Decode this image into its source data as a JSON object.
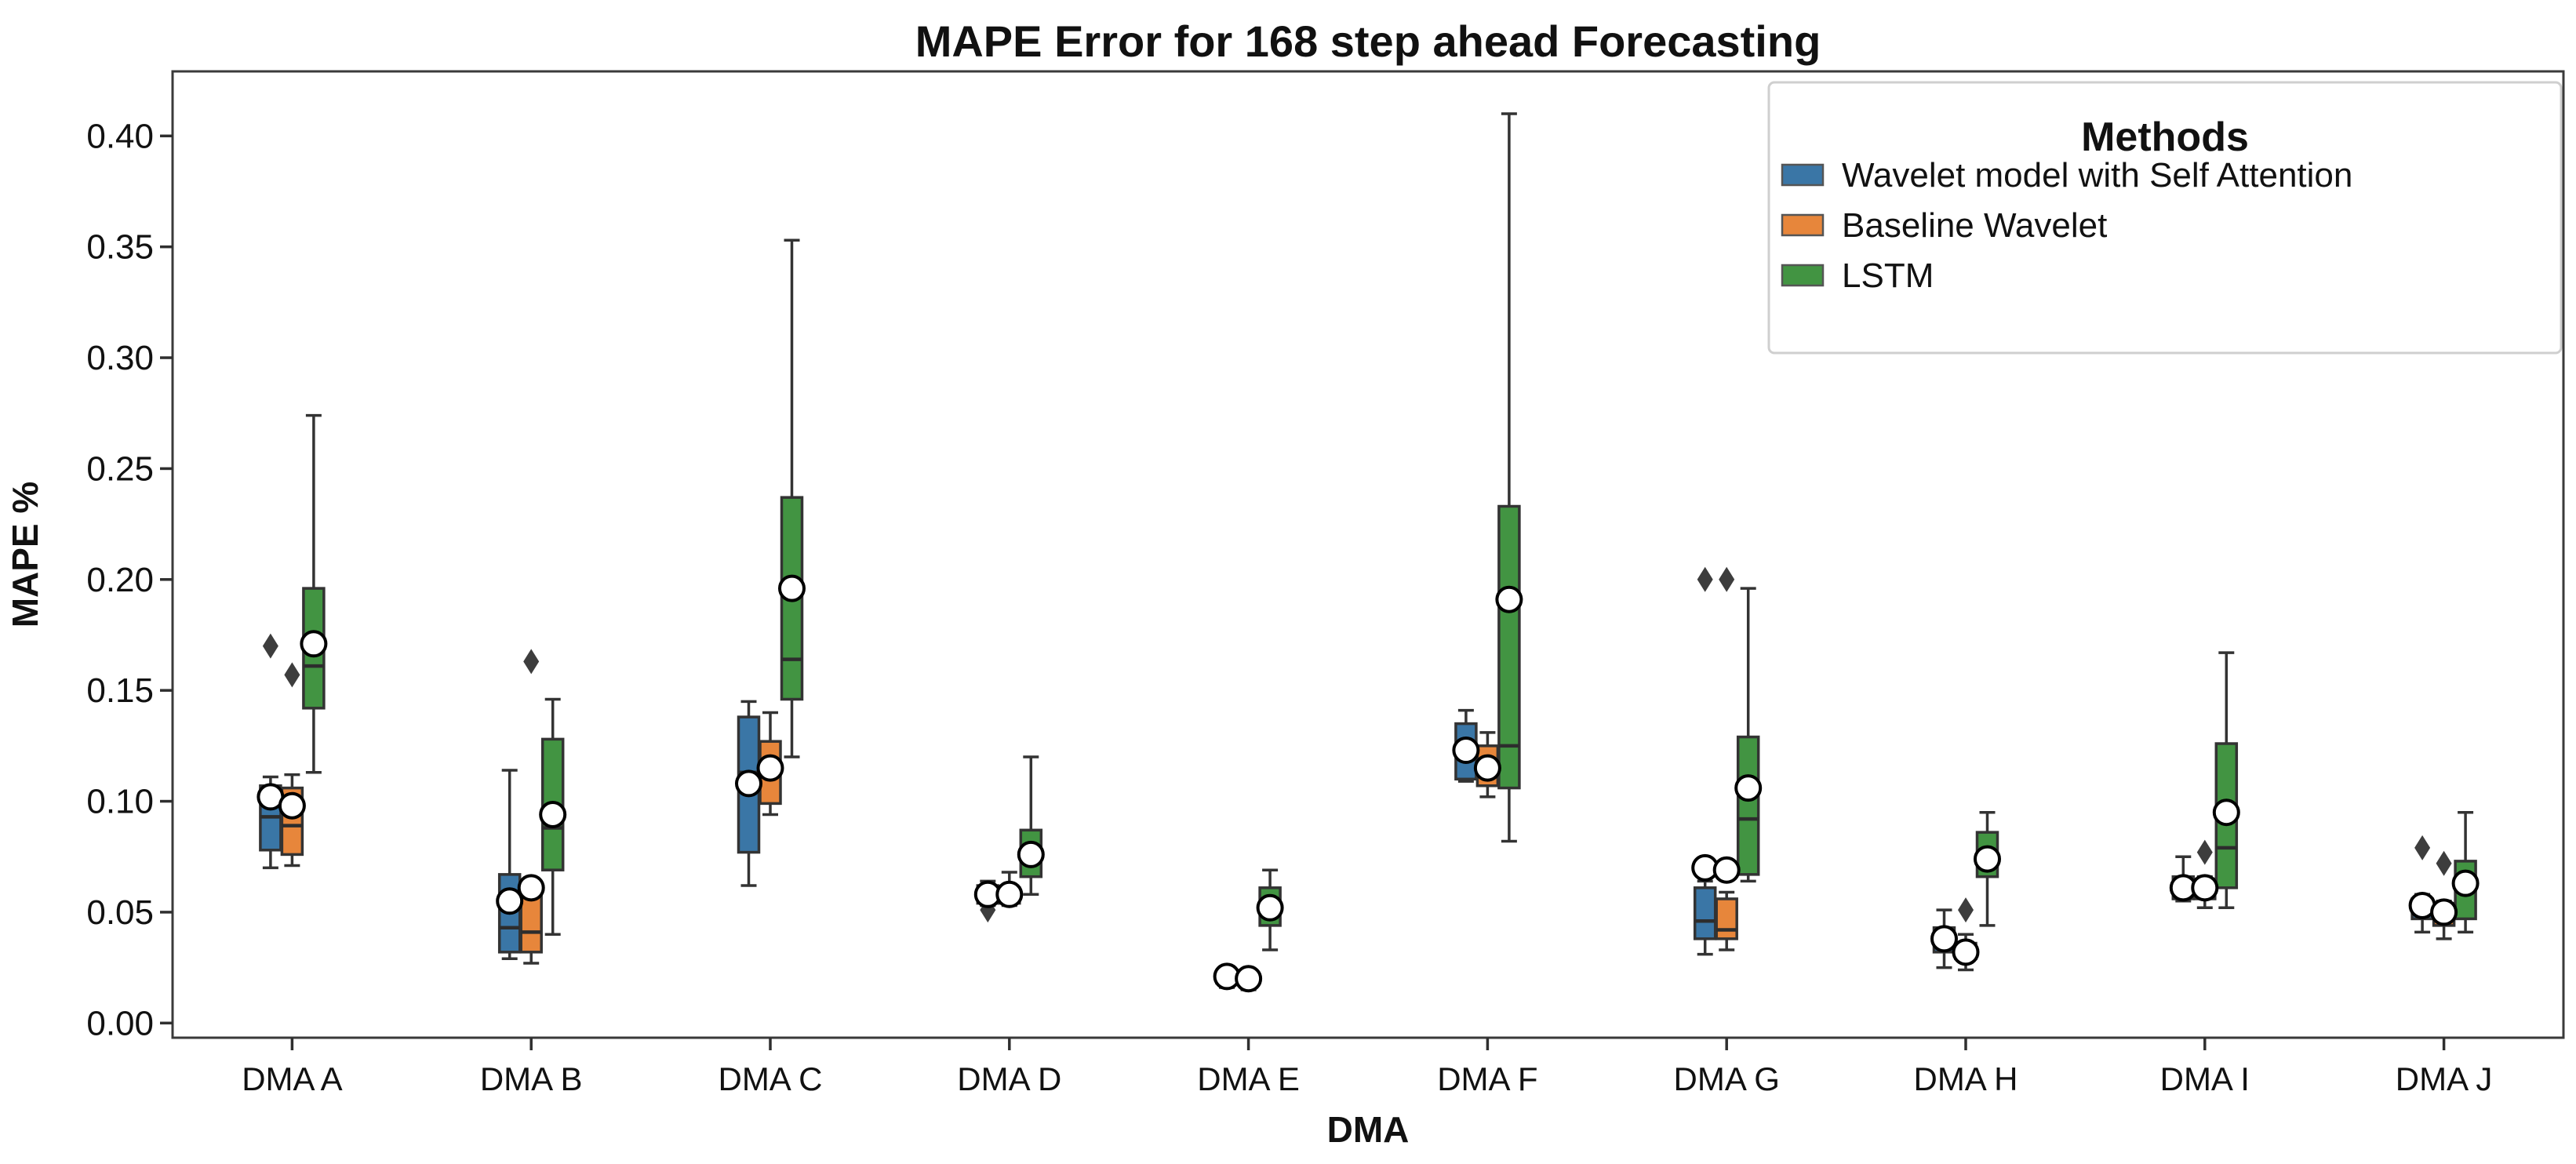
{
  "chart_data": {
    "type": "boxplot",
    "title": "MAPE Error for 168 step ahead Forecasting",
    "xlabel": "DMA",
    "ylabel": "MAPE %",
    "ylim": [
      -0.006,
      0.419
    ],
    "yticks": [
      0.0,
      0.05,
      0.1,
      0.15,
      0.2,
      0.25,
      0.3,
      0.35,
      0.4
    ],
    "ytick_labels": [
      "0.00",
      "0.05",
      "0.10",
      "0.15",
      "0.20",
      "0.25",
      "0.30",
      "0.35",
      "0.40"
    ],
    "grid": "off",
    "categories": [
      "DMA A",
      "DMA B",
      "DMA C",
      "DMA D",
      "DMA E",
      "DMA F",
      "DMA G",
      "DMA H",
      "DMA I",
      "DMA J"
    ],
    "legend": {
      "title": "Methods",
      "position": "upper right"
    },
    "marker_styles": {
      "mean_marker": "white-circle",
      "outlier_marker": "dark-diamond",
      "edge_color": "#333333",
      "median_color": "#2d2d2d",
      "outlier_color": "#3d3d3d"
    },
    "series": [
      {
        "name": "Wavelet model with Self Attention",
        "color": "#3A76A6",
        "boxes": [
          {
            "whislo": 0.07,
            "q1": 0.078,
            "med": 0.093,
            "q3": 0.107,
            "whishi": 0.111,
            "mean": 0.102,
            "outliers": [
              0.17
            ]
          },
          {
            "whislo": 0.029,
            "q1": 0.032,
            "med": 0.043,
            "q3": 0.067,
            "whishi": 0.114,
            "mean": 0.055,
            "outliers": []
          },
          {
            "whislo": 0.062,
            "q1": 0.077,
            "med": 0.113,
            "q3": 0.138,
            "whishi": 0.145,
            "mean": 0.108,
            "outliers": []
          },
          {
            "whislo": 0.053,
            "q1": 0.054,
            "med": 0.058,
            "q3": 0.062,
            "whishi": 0.064,
            "mean": 0.058,
            "outliers": [
              0.051
            ]
          },
          {
            "whislo": 0.016,
            "q1": 0.018,
            "med": 0.02,
            "q3": 0.022,
            "whishi": 0.024,
            "mean": 0.021,
            "outliers": []
          },
          {
            "whislo": 0.109,
            "q1": 0.11,
            "med": 0.125,
            "q3": 0.135,
            "whishi": 0.141,
            "mean": 0.123,
            "outliers": []
          },
          {
            "whislo": 0.031,
            "q1": 0.038,
            "med": 0.046,
            "q3": 0.061,
            "whishi": 0.064,
            "mean": 0.07,
            "outliers": [
              0.2
            ]
          },
          {
            "whislo": 0.025,
            "q1": 0.032,
            "med": 0.037,
            "q3": 0.043,
            "whishi": 0.051,
            "mean": 0.038,
            "outliers": []
          },
          {
            "whislo": 0.055,
            "q1": 0.056,
            "med": 0.06,
            "q3": 0.066,
            "whishi": 0.075,
            "mean": 0.061,
            "outliers": []
          },
          {
            "whislo": 0.041,
            "q1": 0.047,
            "med": 0.052,
            "q3": 0.056,
            "whishi": 0.058,
            "mean": 0.053,
            "outliers": [
              0.079
            ]
          }
        ]
      },
      {
        "name": "Baseline Wavelet",
        "color": "#E7863B",
        "boxes": [
          {
            "whislo": 0.071,
            "q1": 0.076,
            "med": 0.089,
            "q3": 0.106,
            "whishi": 0.112,
            "mean": 0.098,
            "outliers": [
              0.157
            ]
          },
          {
            "whislo": 0.027,
            "q1": 0.032,
            "med": 0.041,
            "q3": 0.058,
            "whishi": 0.063,
            "mean": 0.061,
            "outliers": [
              0.163
            ]
          },
          {
            "whislo": 0.094,
            "q1": 0.099,
            "med": 0.112,
            "q3": 0.127,
            "whishi": 0.14,
            "mean": 0.115,
            "outliers": []
          },
          {
            "whislo": 0.053,
            "q1": 0.054,
            "med": 0.058,
            "q3": 0.061,
            "whishi": 0.068,
            "mean": 0.058,
            "outliers": []
          },
          {
            "whislo": 0.015,
            "q1": 0.018,
            "med": 0.02,
            "q3": 0.022,
            "whishi": 0.023,
            "mean": 0.02,
            "outliers": []
          },
          {
            "whislo": 0.102,
            "q1": 0.107,
            "med": 0.115,
            "q3": 0.125,
            "whishi": 0.131,
            "mean": 0.115,
            "outliers": []
          },
          {
            "whislo": 0.033,
            "q1": 0.038,
            "med": 0.042,
            "q3": 0.056,
            "whishi": 0.059,
            "mean": 0.069,
            "outliers": [
              0.2
            ]
          },
          {
            "whislo": 0.024,
            "q1": 0.029,
            "med": 0.032,
            "q3": 0.036,
            "whishi": 0.04,
            "mean": 0.032,
            "outliers": [
              0.051
            ]
          },
          {
            "whislo": 0.052,
            "q1": 0.056,
            "med": 0.06,
            "q3": 0.065,
            "whishi": 0.066,
            "mean": 0.061,
            "outliers": [
              0.077
            ]
          },
          {
            "whislo": 0.038,
            "q1": 0.044,
            "med": 0.049,
            "q3": 0.054,
            "whishi": 0.055,
            "mean": 0.05,
            "outliers": [
              0.072
            ]
          }
        ]
      },
      {
        "name": "LSTM",
        "color": "#429442",
        "boxes": [
          {
            "whislo": 0.113,
            "q1": 0.142,
            "med": 0.161,
            "q3": 0.196,
            "whishi": 0.274,
            "mean": 0.171,
            "outliers": []
          },
          {
            "whislo": 0.04,
            "q1": 0.069,
            "med": 0.088,
            "q3": 0.128,
            "whishi": 0.146,
            "mean": 0.094,
            "outliers": []
          },
          {
            "whislo": 0.12,
            "q1": 0.146,
            "med": 0.164,
            "q3": 0.237,
            "whishi": 0.353,
            "mean": 0.196,
            "outliers": []
          },
          {
            "whislo": 0.058,
            "q1": 0.066,
            "med": 0.078,
            "q3": 0.087,
            "whishi": 0.12,
            "mean": 0.076,
            "outliers": []
          },
          {
            "whislo": 0.033,
            "q1": 0.044,
            "med": 0.051,
            "q3": 0.061,
            "whishi": 0.069,
            "mean": 0.052,
            "outliers": []
          },
          {
            "whislo": 0.082,
            "q1": 0.106,
            "med": 0.125,
            "q3": 0.233,
            "whishi": 0.41,
            "mean": 0.191,
            "outliers": []
          },
          {
            "whislo": 0.064,
            "q1": 0.067,
            "med": 0.092,
            "q3": 0.129,
            "whishi": 0.196,
            "mean": 0.106,
            "outliers": []
          },
          {
            "whislo": 0.044,
            "q1": 0.066,
            "med": 0.075,
            "q3": 0.086,
            "whishi": 0.095,
            "mean": 0.074,
            "outliers": []
          },
          {
            "whislo": 0.052,
            "q1": 0.061,
            "med": 0.079,
            "q3": 0.126,
            "whishi": 0.167,
            "mean": 0.095,
            "outliers": []
          },
          {
            "whislo": 0.041,
            "q1": 0.047,
            "med": 0.06,
            "q3": 0.073,
            "whishi": 0.095,
            "mean": 0.063,
            "outliers": []
          }
        ]
      }
    ]
  }
}
